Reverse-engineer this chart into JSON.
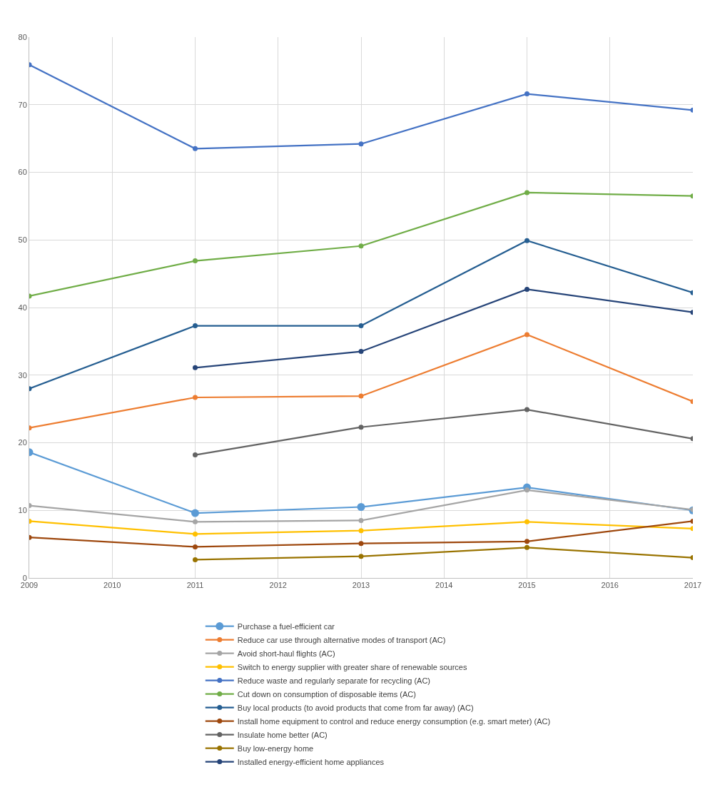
{
  "chart_data": {
    "type": "line",
    "x": [
      2009,
      2011,
      2013,
      2015,
      2017
    ],
    "xlim": [
      2009,
      2017
    ],
    "xticks": [
      2009,
      2010,
      2011,
      2012,
      2013,
      2014,
      2015,
      2016,
      2017
    ],
    "ylim": [
      0,
      80
    ],
    "yticks": [
      0,
      10,
      20,
      30,
      40,
      50,
      60,
      70,
      80
    ],
    "grid": true,
    "legend": "bottom",
    "marker": "circle",
    "line_style": "solid",
    "series": [
      {
        "name": "Purchase a fuel-efficient car",
        "color": "#5b9bd5",
        "values": [
          18.6,
          9.6,
          10.5,
          13.4,
          10.0
        ]
      },
      {
        "name": "Reduce car use through alternative modes of transport (AC)",
        "color": "#ed7d31",
        "values": [
          22.2,
          26.7,
          26.9,
          36.0,
          26.1
        ]
      },
      {
        "name": "Avoid short-haul flights (AC)",
        "color": "#a5a5a5",
        "values": [
          10.7,
          8.3,
          8.5,
          13.0,
          10.1
        ]
      },
      {
        "name": "Switch to energy supplier with greater share of renewable sources",
        "color": "#ffc000",
        "values": [
          8.4,
          6.5,
          7.0,
          8.3,
          7.3
        ]
      },
      {
        "name": "Reduce waste and regularly separate for recycling (AC)",
        "color": "#4472c4",
        "values": [
          75.9,
          63.5,
          64.2,
          71.6,
          69.2
        ]
      },
      {
        "name": "Cut down on consumption of disposable items (AC)",
        "color": "#70ad47",
        "values": [
          41.7,
          46.9,
          49.1,
          57.0,
          56.5
        ]
      },
      {
        "name": "Buy local products (to avoid products that come from far away) (AC)",
        "color": "#255e91",
        "values": [
          28.0,
          37.3,
          37.3,
          49.9,
          42.2
        ]
      },
      {
        "name": "Install home equipment to control and reduce energy consumption (e.g. smart meter) (AC)",
        "color": "#9e480e",
        "values": [
          6.0,
          4.6,
          5.1,
          5.4,
          8.4
        ]
      },
      {
        "name": "Insulate home better (AC)",
        "color": "#636363",
        "values": [
          null,
          18.2,
          22.3,
          24.9,
          20.6
        ]
      },
      {
        "name": "Buy low-energy home",
        "color": "#997300",
        "values": [
          null,
          2.7,
          3.2,
          4.5,
          3.0
        ]
      },
      {
        "name": "Installed energy-efficient home appliances",
        "color": "#264478",
        "values": [
          null,
          31.1,
          33.5,
          42.7,
          39.3
        ]
      }
    ]
  }
}
